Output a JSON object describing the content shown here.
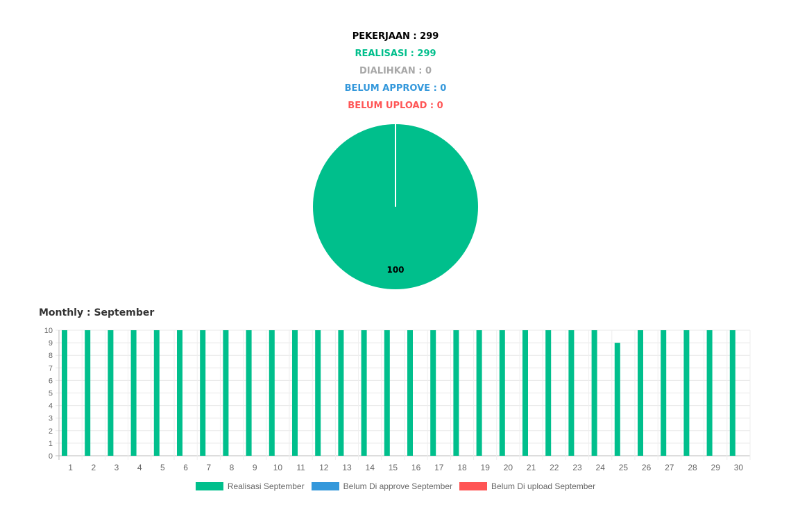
{
  "stats": {
    "pekerjaan": "PEKERJAAN : 299",
    "realisasi": "REALISASI : 299",
    "dialihkan": "DIALIHKAN : 0",
    "belum_approve": "BELUM APPROVE : 0",
    "belum_upload": "BELUM UPLOAD : 0"
  },
  "colors": {
    "pekerjaan": "#000000",
    "realisasi": "#00bf8c",
    "dialihkan": "#a8a8a8",
    "belum_approve": "#3498db",
    "belum_upload": "#ff5555"
  },
  "monthly_title": "Monthly : September",
  "chart_data": [
    {
      "type": "pie",
      "slices": [
        {
          "value": 100,
          "label": "100",
          "color": "#00bf8c"
        }
      ]
    },
    {
      "type": "bar",
      "categories": [
        "1",
        "2",
        "3",
        "4",
        "5",
        "6",
        "7",
        "8",
        "9",
        "10",
        "11",
        "12",
        "13",
        "14",
        "15",
        "16",
        "17",
        "18",
        "19",
        "20",
        "21",
        "22",
        "23",
        "24",
        "25",
        "26",
        "27",
        "28",
        "29",
        "30"
      ],
      "series": [
        {
          "name": "Realisasi September",
          "color": "#00bf8c",
          "values": [
            10,
            10,
            10,
            10,
            10,
            10,
            10,
            10,
            10,
            10,
            10,
            10,
            10,
            10,
            10,
            10,
            10,
            10,
            10,
            10,
            10,
            10,
            10,
            10,
            9,
            10,
            10,
            10,
            10,
            10
          ]
        },
        {
          "name": "Belum Di approve September",
          "color": "#3498db",
          "values": [
            0,
            0,
            0,
            0,
            0,
            0,
            0,
            0,
            0,
            0,
            0,
            0,
            0,
            0,
            0,
            0,
            0,
            0,
            0,
            0,
            0,
            0,
            0,
            0,
            0,
            0,
            0,
            0,
            0,
            0
          ]
        },
        {
          "name": "Belum Di upload September",
          "color": "#ff5555",
          "values": [
            0,
            0,
            0,
            0,
            0,
            0,
            0,
            0,
            0,
            0,
            0,
            0,
            0,
            0,
            0,
            0,
            0,
            0,
            0,
            0,
            0,
            0,
            0,
            0,
            0,
            0,
            0,
            0,
            0,
            0
          ]
        }
      ],
      "ylim": [
        0,
        10
      ],
      "yticks": [
        0,
        1,
        2,
        3,
        4,
        5,
        6,
        7,
        8,
        9,
        10
      ],
      "grid": true,
      "legend": "bottom"
    }
  ]
}
